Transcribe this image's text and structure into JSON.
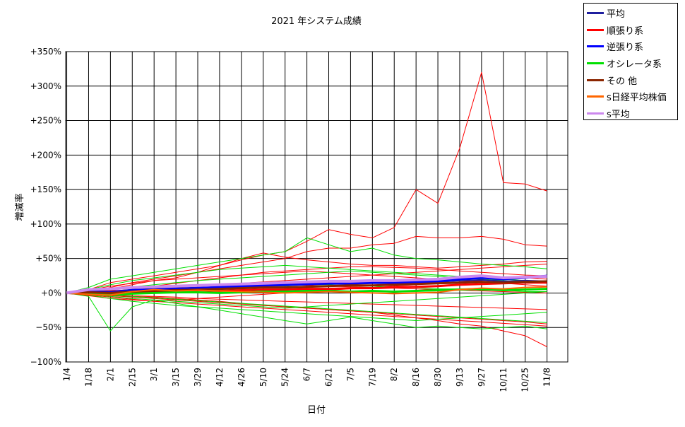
{
  "chart_data": {
    "type": "line",
    "title": "2021 年システム成績",
    "xlabel": "日付",
    "ylabel": "増減率",
    "ylim": [
      -100,
      350
    ],
    "yticks": [
      -100,
      -50,
      0,
      50,
      100,
      150,
      200,
      250,
      300,
      350
    ],
    "ytick_labels": [
      "−100%",
      "−50%",
      "+0%",
      "+50%",
      "+100%",
      "+150%",
      "+200%",
      "+250%",
      "+300%",
      "+350%"
    ],
    "xtick_labels": [
      "1/4",
      "1/18",
      "2/1",
      "2/15",
      "3/1",
      "3/15",
      "3/29",
      "4/12",
      "4/26",
      "5/10",
      "5/24",
      "6/7",
      "6/21",
      "7/5",
      "7/19",
      "8/2",
      "8/16",
      "8/30",
      "9/13",
      "9/27",
      "10/11",
      "10/25",
      "11/8"
    ],
    "grid": true,
    "legend_position": "top-right outside",
    "series": [
      {
        "name": "平均",
        "color": "#1f1f9f",
        "width": 2,
        "values": [
          0,
          3,
          2,
          5,
          6,
          7,
          8,
          8,
          9,
          10,
          11,
          12,
          13,
          13,
          14,
          14,
          15,
          16,
          18,
          19,
          17,
          18,
          17
        ]
      },
      {
        "name": "順張り系",
        "color": "#ff0000",
        "width": 3,
        "values": [
          0,
          -2,
          -1,
          1,
          2,
          3,
          4,
          3,
          4,
          5,
          5,
          6,
          6,
          7,
          7,
          8,
          9,
          10,
          12,
          13,
          14,
          15,
          15
        ]
      },
      {
        "name": "逆張り系",
        "color": "#0000ff",
        "width": 3,
        "values": [
          0,
          2,
          1,
          4,
          5,
          6,
          7,
          9,
          10,
          11,
          12,
          13,
          14,
          14,
          15,
          15,
          16,
          17,
          20,
          22,
          20,
          22,
          25
        ]
      },
      {
        "name": "オシレータ系",
        "color": "#00e000",
        "width": 3,
        "values": [
          0,
          -1,
          -2,
          -1,
          0,
          1,
          1,
          0,
          1,
          2,
          2,
          3,
          3,
          2,
          3,
          2,
          3,
          4,
          5,
          6,
          4,
          5,
          6
        ]
      },
      {
        "name": "その 他",
        "color": "#8b2500",
        "width": 3,
        "values": [
          0,
          1,
          0,
          2,
          3,
          4,
          5,
          6,
          7,
          8,
          8,
          9,
          10,
          11,
          11,
          12,
          13,
          14,
          15,
          16,
          15,
          16,
          17
        ]
      },
      {
        "name": "s日経平均株価",
        "color": "#ff6600",
        "width": 2,
        "values": [
          0,
          -2,
          -3,
          2,
          5,
          3,
          4,
          3,
          2,
          1,
          0,
          1,
          2,
          1,
          0,
          -1,
          0,
          1,
          5,
          7,
          6,
          8,
          9
        ]
      },
      {
        "name": "s平均",
        "color": "#cc88ee",
        "width": 4,
        "values": [
          0,
          5,
          6,
          8,
          9,
          10,
          11,
          12,
          13,
          14,
          15,
          16,
          17,
          17,
          18,
          18,
          19,
          20,
          23,
          25,
          22,
          23,
          24
        ]
      }
    ],
    "background_series": [
      {
        "color": "#ff0000",
        "values": [
          0,
          5,
          15,
          20,
          25,
          30,
          35,
          40,
          48,
          55,
          60,
          75,
          92,
          85,
          80,
          95,
          150,
          130,
          210,
          320,
          160,
          158,
          148
        ]
      },
      {
        "color": "#ff0000",
        "values": [
          0,
          3,
          8,
          15,
          20,
          25,
          30,
          35,
          40,
          45,
          50,
          60,
          65,
          65,
          70,
          72,
          82,
          80,
          80,
          82,
          78,
          70,
          68
        ]
      },
      {
        "color": "#ff0000",
        "values": [
          0,
          2,
          6,
          12,
          18,
          22,
          30,
          40,
          50,
          58,
          52,
          48,
          45,
          42,
          40,
          40,
          38,
          36,
          38,
          40,
          42,
          45,
          46
        ]
      },
      {
        "color": "#ff0000",
        "values": [
          0,
          1,
          4,
          8,
          10,
          14,
          18,
          22,
          26,
          30,
          32,
          34,
          36,
          38,
          38,
          37,
          36,
          34,
          32,
          30,
          28,
          26,
          25
        ]
      },
      {
        "color": "#ff0000",
        "values": [
          0,
          -1,
          -3,
          -5,
          -6,
          -8,
          -10,
          -12,
          -15,
          -18,
          -20,
          -22,
          -24,
          -26,
          -28,
          -32,
          -36,
          -40,
          -45,
          -48,
          -55,
          -62,
          -78
        ]
      },
      {
        "color": "#ff0000",
        "values": [
          0,
          -2,
          -4,
          -6,
          -8,
          -10,
          -12,
          -14,
          -16,
          -18,
          -20,
          -22,
          -24,
          -26,
          -28,
          -30,
          -32,
          -34,
          -36,
          -38,
          -40,
          -42,
          -45
        ]
      },
      {
        "color": "#ff0000",
        "values": [
          0,
          -3,
          -6,
          -9,
          -12,
          -14,
          -16,
          -18,
          -20,
          -22,
          -24,
          -26,
          -28,
          -30,
          -32,
          -34,
          -36,
          -38,
          -40,
          -42,
          -44,
          -46,
          -48
        ]
      },
      {
        "color": "#ff0000",
        "values": [
          0,
          2,
          4,
          3,
          5,
          6,
          8,
          7,
          9,
          10,
          12,
          11,
          10,
          9,
          8,
          7,
          6,
          5,
          4,
          3,
          2,
          1,
          0
        ]
      },
      {
        "color": "#ff0000",
        "values": [
          0,
          -1,
          -2,
          -4,
          -5,
          -6,
          -8,
          -9,
          -10,
          -11,
          -12,
          -13,
          -14,
          -15,
          -16,
          -17,
          -18,
          -19,
          -20,
          -21,
          -22,
          -23,
          -24
        ]
      },
      {
        "color": "#ff0000",
        "values": [
          0,
          4,
          10,
          14,
          18,
          20,
          22,
          24,
          26,
          28,
          30,
          32,
          30,
          28,
          26,
          24,
          22,
          20,
          18,
          16,
          14,
          12,
          10
        ]
      },
      {
        "color": "#ff0000",
        "values": [
          0,
          -4,
          -8,
          -10,
          -12,
          -10,
          -8,
          -6,
          -4,
          -2,
          0,
          2,
          4,
          6,
          8,
          10,
          12,
          14,
          16,
          18,
          20,
          22,
          20
        ]
      },
      {
        "color": "#ff0000",
        "values": [
          0,
          1,
          3,
          5,
          6,
          8,
          10,
          12,
          14,
          16,
          18,
          20,
          22,
          24,
          26,
          28,
          30,
          32,
          34,
          36,
          38,
          40,
          42
        ]
      },
      {
        "color": "#00e000",
        "values": [
          0,
          -5,
          -55,
          -20,
          -10,
          -15,
          -20,
          -25,
          -30,
          -35,
          -40,
          -45,
          -40,
          -35,
          -40,
          -45,
          -50,
          -48,
          -50,
          -52,
          -50,
          -48,
          -52
        ]
      },
      {
        "color": "#00e000",
        "values": [
          0,
          8,
          20,
          25,
          30,
          35,
          40,
          45,
          50,
          55,
          60,
          80,
          70,
          60,
          65,
          55,
          50,
          48,
          45,
          42,
          40,
          38,
          35
        ]
      },
      {
        "color": "#00e000",
        "values": [
          0,
          5,
          12,
          18,
          22,
          26,
          30,
          34,
          36,
          38,
          40,
          38,
          36,
          34,
          32,
          30,
          28,
          26,
          24,
          22,
          20,
          18,
          16
        ]
      },
      {
        "color": "#00e000",
        "values": [
          0,
          -3,
          -8,
          -12,
          -15,
          -18,
          -20,
          -22,
          -24,
          -26,
          -28,
          -30,
          -32,
          -34,
          -36,
          -38,
          -40,
          -38,
          -36,
          -34,
          -32,
          -30,
          -28
        ]
      },
      {
        "color": "#00e000",
        "values": [
          0,
          -2,
          -5,
          -8,
          -10,
          -12,
          -14,
          -16,
          -18,
          -20,
          -22,
          -20,
          -18,
          -16,
          -14,
          -12,
          -10,
          -8,
          -6,
          -4,
          -2,
          0,
          2
        ]
      },
      {
        "color": "#00e000",
        "values": [
          0,
          3,
          6,
          9,
          12,
          15,
          18,
          20,
          22,
          24,
          26,
          28,
          30,
          32,
          30,
          28,
          26,
          24,
          22,
          20,
          18,
          16,
          14
        ]
      },
      {
        "color": "#00e000",
        "values": [
          0,
          -1,
          -3,
          -5,
          -7,
          -9,
          -11,
          -13,
          -15,
          -17,
          -19,
          -21,
          -23,
          -25,
          -27,
          -29,
          -31,
          -33,
          -35,
          -37,
          -39,
          -41,
          -43
        ]
      },
      {
        "color": "#00e000",
        "values": [
          0,
          2,
          2,
          4,
          4,
          6,
          6,
          8,
          8,
          10,
          10,
          12,
          12,
          10,
          10,
          8,
          8,
          6,
          6,
          4,
          4,
          2,
          2
        ]
      }
    ]
  },
  "legend": {
    "items": [
      {
        "label": "平均",
        "color": "#1f1f9f"
      },
      {
        "label": "順張り系",
        "color": "#ff0000"
      },
      {
        "label": "逆張り系",
        "color": "#0000ff"
      },
      {
        "label": "オシレータ系",
        "color": "#00e000"
      },
      {
        "label": "その 他",
        "color": "#8b2500"
      },
      {
        "label": "s日経平均株価",
        "color": "#ff6600"
      },
      {
        "label": "s平均",
        "color": "#cc88ee"
      }
    ]
  }
}
